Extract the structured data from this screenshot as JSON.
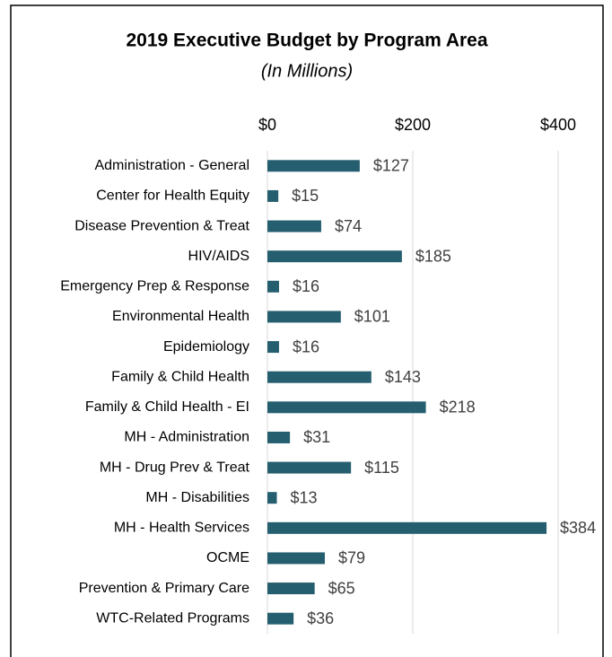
{
  "chart_data": {
    "type": "bar",
    "orientation": "horizontal",
    "title": "2019 Executive Budget by Program Area",
    "subtitle": "(In Millions)",
    "categories": [
      "Administration - General",
      "Center for Health Equity",
      "Disease Prevention & Treat",
      "HIV/AIDS",
      "Emergency Prep & Response",
      "Environmental Health",
      "Epidemiology",
      "Family & Child Health",
      "Family & Child Health - EI",
      "MH - Administration",
      "MH - Drug Prev & Treat",
      "MH - Disabilities",
      "MH - Health Services",
      "OCME",
      "Prevention & Primary Care",
      "WTC-Related Programs"
    ],
    "values": [
      127,
      15,
      74,
      185,
      16,
      101,
      16,
      143,
      218,
      31,
      115,
      13,
      384,
      79,
      65,
      36
    ],
    "value_labels": [
      "$127",
      "$15",
      "$74",
      "$185",
      "$16",
      "$101",
      "$16",
      "$143",
      "$218",
      "$31",
      "$115",
      "$13",
      "$384",
      "$79",
      "$65",
      "$36"
    ],
    "color": "#255e6e",
    "xlim": [
      0,
      400
    ],
    "xticks": [
      {
        "value": 0,
        "label": "$0"
      },
      {
        "value": 200,
        "label": "$200"
      },
      {
        "value": 400,
        "label": "$400"
      }
    ],
    "grid": true
  }
}
